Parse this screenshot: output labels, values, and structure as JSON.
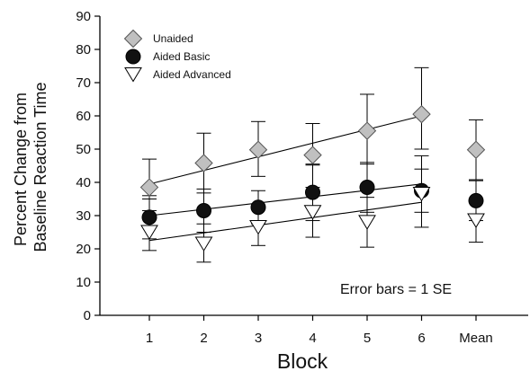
{
  "chart_data": {
    "type": "scatter",
    "ylabel_lines": [
      "Percent Change from",
      "Baseline Reaction Time"
    ],
    "xlabel": "Block",
    "categories": [
      "1",
      "2",
      "3",
      "4",
      "5",
      "6",
      "Mean"
    ],
    "ylim": [
      0,
      90
    ],
    "yticks": [
      0,
      10,
      20,
      30,
      40,
      50,
      60,
      70,
      80,
      90
    ],
    "ytick_labels": [
      "0",
      "10",
      "20",
      "30",
      "40",
      "50",
      "60",
      "70",
      "80",
      "90"
    ],
    "grid": false,
    "legend_position": "top-left",
    "annotation": "Error bars = 1 SE",
    "series": [
      {
        "name": "Unaided",
        "marker": "diamond",
        "color": "#c0c0c0",
        "values": [
          38.5,
          45.8,
          49.8,
          48.2,
          55.5,
          60.5,
          49.8
        ],
        "err_plus": [
          8.5,
          9.0,
          8.5,
          9.5,
          11.0,
          14.0,
          9.0
        ],
        "err_minus": [
          3.5,
          9.0,
          8.0,
          3.0,
          10.0,
          10.5,
          9.0
        ],
        "fit": {
          "x0": 1,
          "y0": 39.5,
          "x1": 6,
          "y1": 60.0
        }
      },
      {
        "name": "Aided Basic",
        "marker": "circle",
        "color": "#111111",
        "values": [
          29.5,
          31.5,
          32.5,
          37.0,
          38.5,
          37.5,
          34.5
        ],
        "err_plus": [
          6.5,
          6.5,
          5.0,
          8.5,
          7.5,
          6.5,
          6.0
        ],
        "err_minus": [
          6.5,
          6.5,
          5.0,
          8.5,
          7.5,
          6.5,
          6.0
        ],
        "fit": {
          "x0": 1,
          "y0": 30.0,
          "x1": 6,
          "y1": 39.5
        }
      },
      {
        "name": "Aided Advanced",
        "marker": "triangle-down",
        "color": "#ffffff",
        "values": [
          25.0,
          21.5,
          26.5,
          31.0,
          28.0,
          36.5,
          28.5
        ],
        "err_plus": [
          6.5,
          6.0,
          6.0,
          7.5,
          7.5,
          11.5,
          6.5
        ],
        "err_minus": [
          5.5,
          5.5,
          5.5,
          7.5,
          7.5,
          10.0,
          6.5
        ],
        "fit": {
          "x0": 1,
          "y0": 22.5,
          "x1": 6,
          "y1": 34.0
        }
      }
    ]
  }
}
